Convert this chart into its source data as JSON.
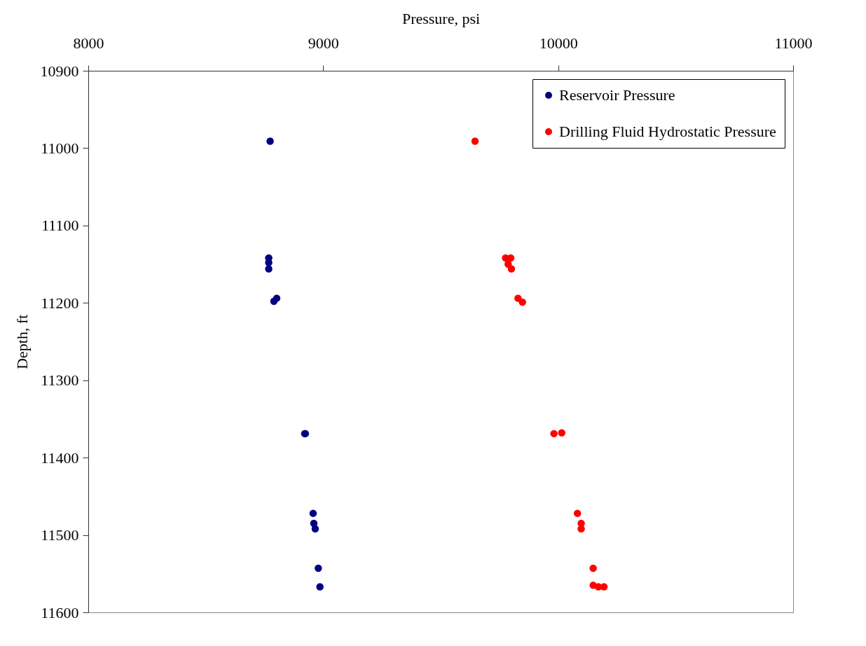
{
  "chart_data": {
    "type": "scatter",
    "xlabel": "Pressure, psi",
    "ylabel": "Depth, ft",
    "xlim": [
      8000,
      11000
    ],
    "xticks": [
      8000,
      9000,
      10000,
      11000
    ],
    "ylim": [
      11600,
      10900
    ],
    "yticks": [
      10900,
      11000,
      11100,
      11200,
      11300,
      11400,
      11500,
      11600
    ],
    "grid": false,
    "legend": "top right",
    "marker": "circle",
    "series": [
      {
        "name": "Reservoir Pressure",
        "color": "#000080",
        "x": [
          8774,
          8768,
          8768,
          8768,
          8802,
          8790,
          8921,
          8924,
          8957,
          8960,
          8966,
          8979,
          8986
        ],
        "values": [
          10991,
          11142,
          11148,
          11156,
          11194,
          11198,
          11369,
          11369,
          11472,
          11485,
          11492,
          11543,
          11567
        ]
      },
      {
        "name": "Drilling Fluid Hydrostatic Pressure",
        "color": "#ff0000",
        "x": [
          9646,
          9776,
          9798,
          9787,
          9801,
          9829,
          9848,
          9982,
          10015,
          10082,
          10098,
          10098,
          10149,
          10149,
          10171,
          10195
        ],
        "values": [
          10991,
          11142,
          11142,
          11150,
          11156,
          11194,
          11199,
          11369,
          11368,
          11472,
          11485,
          11492,
          11543,
          11565,
          11567,
          11567
        ]
      }
    ]
  }
}
